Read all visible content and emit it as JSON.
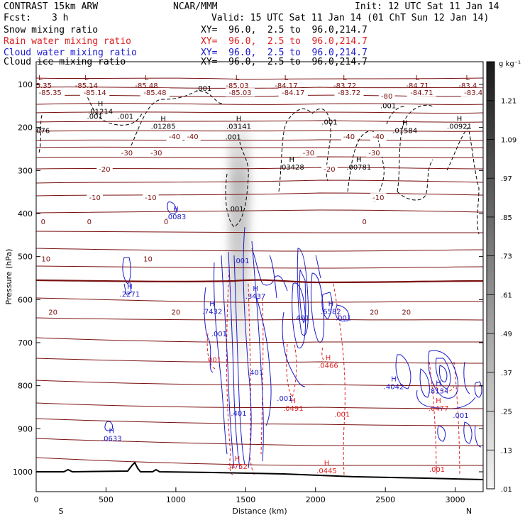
{
  "header": {
    "model": "CONTRAST 15km ARW",
    "org": "NCAR/MMM",
    "init": "Init: 12 UTC Sat 11 Jan 14",
    "fcst_label": "Fcst:",
    "fcst_value": "3 h",
    "valid": "Valid: 15 UTC Sat 11 Jan 14 (01 ChT Sun 12 Jan 14)"
  },
  "fields": [
    {
      "name": "Snow mixing ratio",
      "range": "XY=  96.0,  2.5 to  96.0,214.7",
      "color": "#000000"
    },
    {
      "name": "Rain water mixing ratio",
      "range": "XY=  96.0,  2.5 to  96.0,214.7",
      "color": "#e02020"
    },
    {
      "name": "Cloud water mixing ratio",
      "range": "XY=  96.0,  2.5 to  96.0,214.7",
      "color": "#1a1acc"
    },
    {
      "name": "Cloud ice mixing ratio",
      "range": "XY=  96.0,  2.5 to  96.0,214.7",
      "color": "#000000"
    }
  ],
  "chart_data": {
    "type": "cross-section contour",
    "xlabel": "Distance (km)",
    "ylabel": "Pressure (hPa)",
    "xlim": [
      0,
      3200
    ],
    "ylim": [
      1030,
      50
    ],
    "x_ticks": [
      0,
      500,
      1000,
      1500,
      2000,
      2500,
      3000
    ],
    "y_ticks": [
      100,
      200,
      300,
      400,
      500,
      600,
      700,
      800,
      900,
      1000
    ],
    "x_ends": {
      "left": "S",
      "right": "N"
    },
    "colorbar": {
      "unit": "g kg⁻¹",
      "ticks": [
        "1.21",
        "1.09",
        ".97",
        ".85",
        ".73",
        ".61",
        ".49",
        ".37",
        ".25",
        ".13",
        ".01"
      ],
      "min": 0.01,
      "max": 1.33,
      "colors": {
        "low": "#f4f4f4",
        "high": "#1a1a1a"
      }
    },
    "temperature_contours": [
      {
        "level": "-80",
        "p": 120
      },
      {
        "level": "-40",
        "p": 222
      },
      {
        "level": "-30",
        "p": 260
      },
      {
        "level": "-20",
        "p": 298
      },
      {
        "level": "-10",
        "p": 364
      },
      {
        "level": "0",
        "p": 420
      },
      {
        "level": "10",
        "p": 506
      },
      {
        "level": "20",
        "p": 630
      }
    ],
    "temperature_labels": [
      {
        "text": "-85.35",
        "x": 100,
        "p": 120
      },
      {
        "text": "-85.14",
        "x": 420,
        "p": 120
      },
      {
        "text": "-85.48",
        "x": 850,
        "p": 120
      },
      {
        "text": "-85.03",
        "x": 1460,
        "p": 120
      },
      {
        "text": "-84.17",
        "x": 1840,
        "p": 120
      },
      {
        "text": "-83.72",
        "x": 2240,
        "p": 120
      },
      {
        "text": "-84.71",
        "x": 2760,
        "p": 120
      },
      {
        "text": "-83.4",
        "x": 3130,
        "p": 120
      },
      {
        "text": "-80",
        "x": 2510,
        "p": 128
      },
      {
        "text": "-40",
        "x": 990,
        "p": 222
      },
      {
        "text": "-40",
        "x": 1120,
        "p": 222
      },
      {
        "text": "-40",
        "x": 2240,
        "p": 222
      },
      {
        "text": "-40",
        "x": 2450,
        "p": 222
      },
      {
        "text": "-30",
        "x": 650,
        "p": 260
      },
      {
        "text": "-30",
        "x": 860,
        "p": 260
      },
      {
        "text": "-30",
        "x": 1950,
        "p": 260
      },
      {
        "text": "-30",
        "x": 2420,
        "p": 260
      },
      {
        "text": "-20",
        "x": 490,
        "p": 298
      },
      {
        "text": "-20",
        "x": 2100,
        "p": 298
      },
      {
        "text": "-10",
        "x": 420,
        "p": 364
      },
      {
        "text": "-10",
        "x": 820,
        "p": 364
      },
      {
        "text": "-10",
        "x": 2450,
        "p": 364
      },
      {
        "text": "0",
        "x": 50,
        "p": 420
      },
      {
        "text": "0",
        "x": 380,
        "p": 420
      },
      {
        "text": "0",
        "x": 930,
        "p": 420
      },
      {
        "text": "0",
        "x": 2350,
        "p": 420
      },
      {
        "text": "10",
        "x": 70,
        "p": 506
      },
      {
        "text": "10",
        "x": 800,
        "p": 506
      },
      {
        "text": "20",
        "x": 120,
        "p": 630
      },
      {
        "text": "20",
        "x": 1000,
        "p": 630
      },
      {
        "text": "20",
        "x": 2420,
        "p": 630
      },
      {
        "text": "20",
        "x": 2650,
        "p": 630
      }
    ],
    "extrema": [
      {
        "kind": "L",
        "value": "-85.35",
        "x": 30,
        "p": 90,
        "color": "#7a1010"
      },
      {
        "kind": "L",
        "value": "-85.14",
        "x": 360,
        "p": 90,
        "color": "#7a1010"
      },
      {
        "kind": "L",
        "value": "-85.48",
        "x": 790,
        "p": 90,
        "color": "#7a1010"
      },
      {
        "kind": "L",
        "value": "-85.03",
        "x": 1440,
        "p": 90,
        "color": "#7a1010"
      },
      {
        "kind": "L",
        "value": "-84.17",
        "x": 1790,
        "p": 90,
        "color": "#7a1010"
      },
      {
        "kind": "L",
        "value": "-83.72",
        "x": 2210,
        "p": 90,
        "color": "#7a1010"
      },
      {
        "kind": "L",
        "value": "-84.71",
        "x": 2730,
        "p": 90,
        "color": "#7a1010"
      },
      {
        "kind": "L",
        "value": "-83.4",
        "x": 3090,
        "p": 90,
        "color": "#7a1010"
      },
      {
        "kind": "H",
        "value": ".01214",
        "x": 460,
        "p": 150,
        "color": "#000000"
      },
      {
        "kind": "H",
        "value": ".01285",
        "x": 910,
        "p": 185,
        "color": "#000000"
      },
      {
        "kind": "H",
        "value": ".03141",
        "x": 1450,
        "p": 185,
        "color": "#000000"
      },
      {
        "kind": "H",
        "value": ".01584",
        "x": 2640,
        "p": 195,
        "color": "#000000"
      },
      {
        "kind": "H",
        "value": ".00921",
        "x": 3030,
        "p": 185,
        "color": "#000000"
      },
      {
        "kind": "H",
        "value": ".03428",
        "x": 1830,
        "p": 280,
        "color": "#000000"
      },
      {
        "kind": "H",
        "value": ".00781",
        "x": 2310,
        "p": 280,
        "color": "#000000"
      },
      {
        "kind": "H",
        "value": ".0083",
        "x": 1000,
        "p": 395,
        "color": "#1a1acc"
      },
      {
        "kind": "H",
        "value": ".2271",
        "x": 670,
        "p": 575,
        "color": "#1a1acc"
      },
      {
        "kind": "H",
        "value": ".7432",
        "x": 1260,
        "p": 615,
        "color": "#1a1acc"
      },
      {
        "kind": "H",
        "value": ".3437",
        "x": 1570,
        "p": 580,
        "color": "#1a1acc"
      },
      {
        "kind": "H",
        "value": ".6582",
        "x": 2110,
        "p": 615,
        "color": "#1a1acc"
      },
      {
        "kind": "H",
        "value": ".0466",
        "x": 2090,
        "p": 740,
        "color": "#e02020"
      },
      {
        "kind": "H",
        "value": ".0491",
        "x": 1840,
        "p": 840,
        "color": "#e02020"
      },
      {
        "kind": "H",
        "value": ".4042",
        "x": 2560,
        "p": 790,
        "color": "#1a1acc"
      },
      {
        "kind": "H",
        "value": ".8134",
        "x": 2880,
        "p": 800,
        "color": "#1a1acc"
      },
      {
        "kind": "H",
        "value": ".0477",
        "x": 2880,
        "p": 840,
        "color": "#e02020"
      },
      {
        "kind": "H",
        "value": ".0633",
        "x": 540,
        "p": 910,
        "color": "#1a1acc"
      },
      {
        "kind": "H",
        "value": ".4752",
        "x": 1440,
        "p": 975,
        "color": "#e02020"
      },
      {
        "kind": "H",
        "value": ".0445",
        "x": 2080,
        "p": 985,
        "color": "#e02020"
      }
    ],
    "contour_value_labels": [
      {
        "text": ".001",
        "x": 1200,
        "p": 115,
        "color": "#000000"
      },
      {
        "text": ".001",
        "x": 420,
        "p": 180,
        "color": "#000000"
      },
      {
        "text": ".001",
        "x": 640,
        "p": 180,
        "color": "#000000"
      },
      {
        "text": ".001",
        "x": 2100,
        "p": 193,
        "color": "#000000"
      },
      {
        "text": ".001",
        "x": 2520,
        "p": 155,
        "color": "#000000"
      },
      {
        "text": "-076",
        "x": 40,
        "p": 213,
        "color": "#000000"
      },
      {
        "text": ".001",
        "x": 1410,
        "p": 228,
        "color": "#000000"
      },
      {
        "text": ".001",
        "x": 1430,
        "p": 395,
        "color": "#000000"
      },
      {
        "text": ".001",
        "x": 1470,
        "p": 515,
        "color": "#1a1acc"
      },
      {
        "text": ".001",
        "x": 1310,
        "p": 685,
        "color": "#1a1acc"
      },
      {
        "text": ".001",
        "x": 1270,
        "p": 745,
        "color": "#e02020"
      },
      {
        "text": ".401",
        "x": 1570,
        "p": 775,
        "color": "#1a1acc"
      },
      {
        "text": ".401",
        "x": 1900,
        "p": 648,
        "color": "#1a1acc"
      },
      {
        "text": ".001",
        "x": 2200,
        "p": 648,
        "color": "#1a1acc"
      },
      {
        "text": ".001",
        "x": 1780,
        "p": 835,
        "color": "#1a1acc"
      },
      {
        "text": ".401",
        "x": 1450,
        "p": 870,
        "color": "#1a1acc"
      },
      {
        "text": ".001",
        "x": 2190,
        "p": 872,
        "color": "#e02020"
      },
      {
        "text": ".001",
        "x": 3040,
        "p": 875,
        "color": "#1a1acc"
      },
      {
        "text": ".001",
        "x": 2870,
        "p": 1000,
        "color": "#e02020"
      }
    ]
  }
}
